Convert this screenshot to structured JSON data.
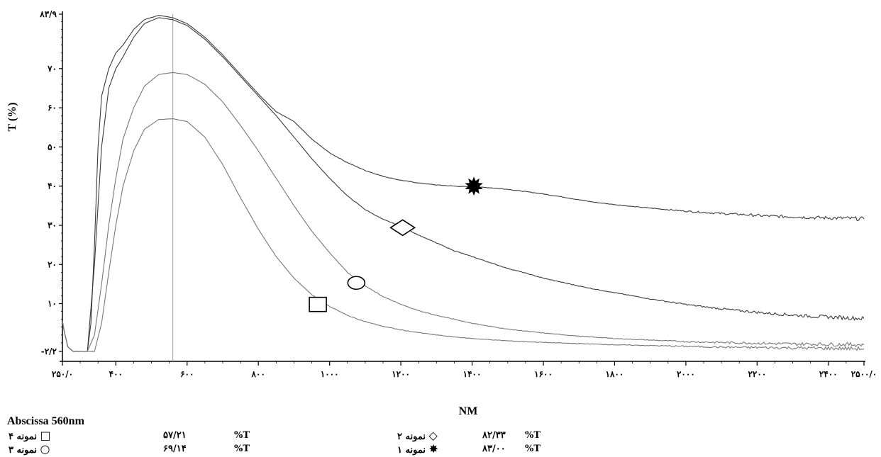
{
  "chart_data": {
    "type": "line",
    "xlabel": "NM",
    "ylabel": "T (%)",
    "xlim": [
      250,
      2500
    ],
    "ylim": [
      -2.2,
      83.9
    ],
    "x_tick_labels": [
      "۲۵۰/۰",
      "۴۰۰",
      "۶۰۰",
      "۸۰۰",
      "۱۰۰۰",
      "۱۲۰۰",
      "۱۴۰۰",
      "۱۶۰۰",
      "۱۸۰۰",
      "۲۰۰۰",
      "۲۲۰۰",
      "۲۴۰۰",
      "۲۵۰۰/۰"
    ],
    "x_tick_values": [
      250,
      400,
      600,
      800,
      1000,
      1200,
      1400,
      1600,
      1800,
      2000,
      2200,
      2400,
      2500
    ],
    "y_tick_labels": [
      "-۲/۲",
      "۱۰",
      "۲۰",
      "۳۰",
      "۴۰",
      "۵۰",
      "۶۰",
      "۷۰",
      "۸۳/۹"
    ],
    "y_tick_values": [
      -2.2,
      10,
      20,
      30,
      40,
      50,
      60,
      70,
      83.9
    ],
    "marker_line_x": 560,
    "series": [
      {
        "name": "نمونه ۱",
        "marker": "star",
        "marker_at": [
          1405,
          40
        ],
        "color": "#3a3a3a",
        "x": [
          250,
          255,
          265,
          280,
          300,
          320,
          330,
          340,
          350,
          360,
          380,
          400,
          420,
          450,
          480,
          520,
          560,
          600,
          650,
          700,
          750,
          800,
          850,
          900,
          950,
          1000,
          1050,
          1100,
          1150,
          1200,
          1250,
          1300,
          1350,
          1400,
          1450,
          1500,
          1550,
          1600,
          1650,
          1700,
          1750,
          1800,
          1850,
          1900,
          1950,
          2000,
          2050,
          2100,
          2150,
          2200,
          2250,
          2300,
          2350,
          2400,
          2450,
          2500
        ],
        "y": [
          5.5,
          3,
          -1,
          -2.2,
          -2.2,
          -2.2,
          5,
          25,
          50,
          63,
          70,
          74,
          76,
          80,
          82.5,
          83.6,
          83,
          81.5,
          78,
          73.5,
          68.5,
          63.5,
          59,
          56.5,
          52,
          48.5,
          46,
          44,
          42.5,
          41.5,
          40.8,
          40.3,
          40,
          39.8,
          39.6,
          39.2,
          38.6,
          38,
          37.3,
          36.5,
          35.8,
          35.3,
          34.8,
          34.4,
          34,
          33.6,
          33.3,
          33,
          32.8,
          32.5,
          32.3,
          32.2,
          32,
          31.9,
          31.8,
          31.6
        ]
      },
      {
        "name": "نمونه ۲",
        "marker": "diamond",
        "marker_at": [
          1205,
          29.4
        ],
        "color": "#3a3a3a",
        "x": [
          250,
          255,
          265,
          280,
          300,
          320,
          340,
          360,
          380,
          400,
          420,
          450,
          480,
          520,
          560,
          600,
          650,
          700,
          750,
          800,
          850,
          900,
          950,
          1000,
          1050,
          1100,
          1150,
          1200,
          1250,
          1300,
          1350,
          1400,
          1450,
          1500,
          1550,
          1600,
          1650,
          1700,
          1750,
          1800,
          1850,
          1900,
          1950,
          2000,
          2050,
          2100,
          2150,
          2200,
          2250,
          2300,
          2350,
          2400,
          2450,
          2500
        ],
        "y": [
          5.5,
          3,
          -1,
          -2.2,
          -2.2,
          -2.2,
          20,
          50,
          65,
          70,
          73,
          78,
          81.5,
          83,
          82.5,
          81,
          77.5,
          73,
          68,
          63,
          58,
          52.5,
          47,
          42,
          37.5,
          34,
          31.5,
          29.8,
          27.5,
          25.5,
          23.5,
          22,
          20.5,
          19,
          17.8,
          16.5,
          15.5,
          14.5,
          13.6,
          12.8,
          12,
          11.2,
          10.5,
          9.8,
          9.2,
          8.7,
          8.2,
          7.8,
          7.4,
          7.1,
          6.8,
          6.6,
          6.4,
          6.2
        ]
      },
      {
        "name": "نمونه ۳",
        "marker": "circle",
        "marker_at": [
          1075,
          15.3
        ],
        "color": "#777777",
        "x": [
          250,
          255,
          265,
          280,
          300,
          320,
          340,
          360,
          380,
          400,
          420,
          450,
          480,
          520,
          560,
          600,
          650,
          700,
          750,
          800,
          850,
          900,
          950,
          1000,
          1050,
          1100,
          1150,
          1200,
          1250,
          1300,
          1350,
          1400,
          1450,
          1500,
          1550,
          1600,
          1650,
          1700,
          1750,
          1800,
          1850,
          1900,
          1950,
          2000,
          2050,
          2100,
          2150,
          2200,
          2250,
          2300,
          2350,
          2400,
          2450,
          2500
        ],
        "y": [
          5.5,
          3,
          -1,
          -2.2,
          -2.2,
          -2.2,
          2,
          15,
          30,
          42,
          52,
          60,
          65.5,
          68.5,
          69,
          68.5,
          66,
          61.5,
          55.5,
          49,
          42,
          35,
          28.5,
          23,
          18,
          14.5,
          11.8,
          9.8,
          8.2,
          7,
          6,
          5,
          4.2,
          3.5,
          3,
          2.5,
          2.1,
          1.7,
          1.4,
          1.1,
          0.9,
          0.7,
          0.5,
          0.3,
          0.2,
          0.1,
          0,
          -0.1,
          -0.2,
          -0.3,
          -0.3,
          -0.4,
          -0.4,
          -0.5
        ]
      },
      {
        "name": "نمونه ۴",
        "marker": "square",
        "marker_at": [
          967,
          9.8
        ],
        "color": "#777777",
        "x": [
          250,
          255,
          265,
          280,
          300,
          320,
          340,
          360,
          380,
          400,
          420,
          450,
          480,
          520,
          560,
          600,
          650,
          700,
          750,
          800,
          850,
          900,
          950,
          1000,
          1050,
          1100,
          1150,
          1200,
          1250,
          1300,
          1350,
          1400,
          1450,
          1500,
          1600,
          1700,
          1800,
          1900,
          2000,
          2100,
          2200,
          2300,
          2400,
          2500
        ],
        "y": [
          5.5,
          3,
          -1,
          -2.2,
          -2.2,
          -2.2,
          -2.2,
          5,
          18,
          30,
          40,
          49,
          54.5,
          57,
          57.2,
          56.5,
          52.5,
          45.5,
          37,
          29,
          22,
          16.5,
          12.3,
          9.3,
          7,
          5.4,
          4.2,
          3.3,
          2.6,
          2,
          1.5,
          1.1,
          0.8,
          0.5,
          0.1,
          -0.2,
          -0.5,
          -0.7,
          -0.9,
          -1.1,
          -1.2,
          -1.3,
          -1.4,
          -1.5
        ]
      }
    ]
  },
  "legend": {
    "title": "Abscissa 560nm",
    "unit": "%T",
    "entries": [
      {
        "symbol": "□",
        "name": "نمونه ۴",
        "value": "۵۷/۲۱"
      },
      {
        "symbol": "○",
        "name": "نمونه ۳",
        "value": "۶۹/۱۴"
      },
      {
        "symbol": "◇",
        "name": "نمونه ۲",
        "value": "۸۲/۳۳"
      },
      {
        "symbol": "✸",
        "name": "نمونه ۱",
        "value": "۸۳/۰۰"
      }
    ]
  }
}
